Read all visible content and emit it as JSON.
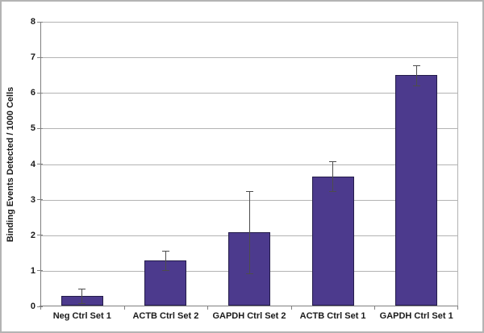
{
  "window": {
    "background": "#ffffff",
    "frame_border_color": "#b4b4b4"
  },
  "chart_data": {
    "type": "bar",
    "title": "",
    "xlabel": "",
    "ylabel": "Binding Events Detected / 1000 Cells",
    "categories": [
      "Neg Ctrl Set 1",
      "ACTB Ctrl Set 2",
      "GAPDH Ctrl Set 2",
      "ACTB Ctrl Set 1",
      "GAPDH Ctrl Set 1"
    ],
    "values": [
      0.3,
      1.3,
      2.08,
      3.65,
      6.5
    ],
    "error_bars": [
      0.2,
      0.27,
      1.15,
      0.42,
      0.28
    ],
    "ylim": [
      0,
      8
    ],
    "ytick_step": 1,
    "ytick_labels": [
      "0",
      "1",
      "2",
      "3",
      "4",
      "5",
      "6",
      "7",
      "8"
    ],
    "grid": true,
    "legend": "none",
    "colors": {
      "bar_fill": "#4c3a8d",
      "bar_border": "#241c4a",
      "error_bar": "#4d4d4d",
      "gridline": "#b3b3b3",
      "axis": "#808080",
      "text": "#1a1a1a"
    }
  }
}
